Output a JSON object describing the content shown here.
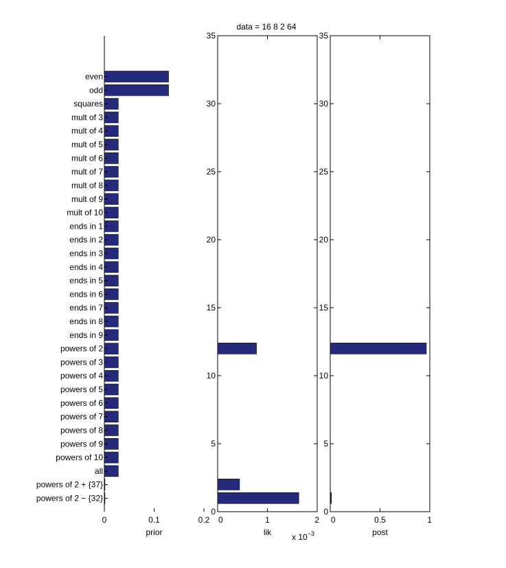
{
  "figure_title": "data = 16   8   2  64",
  "chart_data": [
    {
      "type": "bar",
      "orientation": "horizontal",
      "name": "prior",
      "xlabel": "prior",
      "xlim": [
        0,
        0.2
      ],
      "xticks": [
        0,
        0.1,
        0.2
      ],
      "xtick_labels": [
        "0",
        "0.1",
        "0.2"
      ],
      "categories": [
        "even",
        "odd",
        "squares",
        "mult of 3",
        "mult of 4",
        "mult of 5",
        "mult of 6",
        "mult of 7",
        "mult of 8",
        "mult of 9",
        "mult of 10",
        "ends in 1",
        "ends in 2",
        "ends in 3",
        "ends in 4",
        "ends in 5",
        "ends in 6",
        "ends in 7",
        "ends in 8",
        "ends in 9",
        "powers of 2",
        "powers of 3",
        "powers of 4",
        "powers of 5",
        "powers of 6",
        "powers of 7",
        "powers of 8",
        "powers of 9",
        "powers of 10",
        "all",
        "powers of 2 + {37}",
        "powers of 2 − {32}"
      ],
      "values": [
        0.129,
        0.129,
        0.028,
        0.028,
        0.028,
        0.028,
        0.028,
        0.028,
        0.028,
        0.028,
        0.028,
        0.028,
        0.028,
        0.028,
        0.028,
        0.028,
        0.028,
        0.028,
        0.028,
        0.028,
        0.028,
        0.028,
        0.028,
        0.028,
        0.028,
        0.028,
        0.028,
        0.028,
        0.028,
        0.028,
        0.0012,
        0.0012
      ],
      "bar_color": "#252a7a"
    },
    {
      "type": "bar",
      "orientation": "horizontal",
      "name": "lik",
      "xlabel": "lik",
      "xlim": [
        0,
        0.002
      ],
      "xticks": [
        0,
        0.001,
        0.002
      ],
      "xtick_labels": [
        "0",
        "1",
        "2"
      ],
      "exponent_label": "x 10",
      "exponent": "−3",
      "ylim": [
        0,
        35
      ],
      "yticks": [
        0,
        5,
        10,
        15,
        20,
        25,
        30,
        35
      ],
      "ytick_labels": [
        "0",
        "5",
        "10",
        "15",
        "20",
        "25",
        "30",
        "35"
      ],
      "bars": [
        {
          "y": 12,
          "value": 0.00078
        },
        {
          "y": 2,
          "value": 0.00044
        },
        {
          "y": 1,
          "value": 0.00163
        }
      ],
      "bar_color": "#252a7a"
    },
    {
      "type": "bar",
      "orientation": "horizontal",
      "name": "post",
      "xlabel": "post",
      "xlim": [
        0,
        1
      ],
      "xticks": [
        0,
        0.5,
        1
      ],
      "xtick_labels": [
        "0",
        "0.5",
        "1"
      ],
      "ylim": [
        0,
        35
      ],
      "yticks": [
        0,
        5,
        10,
        15,
        20,
        25,
        30,
        35
      ],
      "ytick_labels": [
        "0",
        "5",
        "10",
        "15",
        "20",
        "25",
        "30",
        "35"
      ],
      "bars": [
        {
          "y": 12,
          "value": 0.965
        },
        {
          "y": 1,
          "value": 0.012
        }
      ],
      "bar_color": "#252a7a"
    }
  ]
}
